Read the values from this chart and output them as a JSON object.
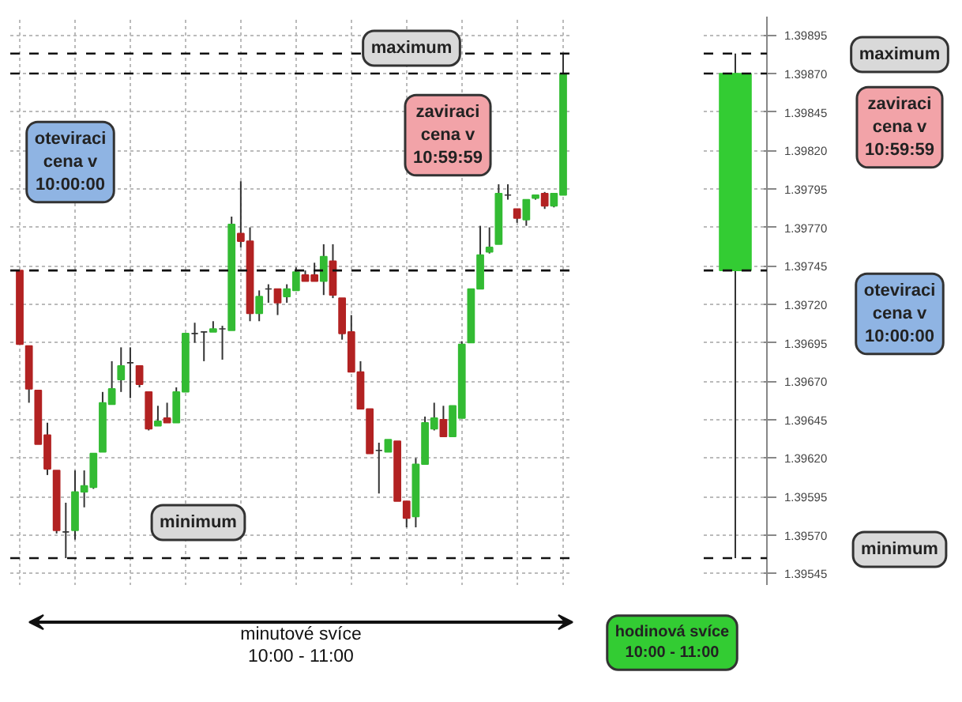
{
  "chart_data": [
    {
      "type": "candlestick",
      "categories": [
        null,
        null,
        null,
        null,
        null,
        null,
        null,
        null,
        null,
        null,
        null,
        null,
        null,
        null,
        null,
        null,
        null,
        null,
        null,
        null,
        null,
        null,
        null,
        null,
        null,
        null,
        null,
        null,
        null,
        null,
        null,
        null,
        null,
        null,
        null,
        null,
        null,
        null,
        null,
        null,
        null,
        null,
        null,
        null,
        null,
        null,
        null,
        null,
        null,
        null,
        null,
        null,
        null,
        null,
        null,
        null,
        null,
        null,
        null,
        null
      ],
      "ohlc": [
        [
          1.39742,
          1.39742,
          1.39694,
          1.39694
        ],
        [
          1.39693,
          1.39693,
          1.39656,
          1.39665
        ],
        [
          1.39664,
          1.39664,
          1.39629,
          1.39629
        ],
        [
          1.39635,
          1.39643,
          1.39609,
          1.39613
        ],
        [
          1.39612,
          1.39612,
          1.39571,
          1.39573
        ],
        [
          1.39572,
          1.39591,
          1.39555,
          1.39572
        ],
        [
          1.39573,
          1.39612,
          1.39567,
          1.39598
        ],
        [
          1.39598,
          1.39612,
          1.39588,
          1.39602
        ],
        [
          1.39601,
          1.39623,
          1.396,
          1.39623
        ],
        [
          1.39624,
          1.39663,
          1.39624,
          1.39656
        ],
        [
          1.39655,
          1.39683,
          1.39655,
          1.39665
        ],
        [
          1.39671,
          1.39692,
          1.39663,
          1.3968
        ],
        [
          1.39682,
          1.39692,
          1.39659,
          1.39682
        ],
        [
          1.3968,
          1.3968,
          1.39666,
          1.39668
        ],
        [
          1.39663,
          1.39663,
          1.39638,
          1.39639
        ],
        [
          1.39641,
          1.39654,
          1.39641,
          1.39644
        ],
        [
          1.39646,
          1.39656,
          1.39643,
          1.39643
        ],
        [
          1.39643,
          1.39666,
          1.39643,
          1.39663
        ],
        [
          1.39663,
          1.39701,
          1.39663,
          1.39701
        ],
        [
          1.39701,
          1.39708,
          1.39695,
          1.39701
        ],
        [
          1.39702,
          1.39702,
          1.39683,
          1.39702
        ],
        [
          1.39702,
          1.39709,
          1.39702,
          1.39704
        ],
        [
          1.39704,
          1.39706,
          1.39684,
          1.39704
        ],
        [
          1.39703,
          1.39777,
          1.39703,
          1.39772
        ],
        [
          1.39766,
          1.398,
          1.39757,
          1.39761
        ],
        [
          1.39761,
          1.3977,
          1.39709,
          1.39714
        ],
        [
          1.39714,
          1.39729,
          1.39709,
          1.39725
        ],
        [
          1.3973,
          1.39733,
          1.39721,
          1.3973
        ],
        [
          1.3973,
          1.3973,
          1.39713,
          1.39721
        ],
        [
          1.39725,
          1.39733,
          1.39721,
          1.3973
        ],
        [
          1.39729,
          1.39744,
          1.39729,
          1.39741
        ],
        [
          1.39739,
          1.39742,
          1.39735,
          1.39735
        ],
        [
          1.39739,
          1.39747,
          1.39735,
          1.39735
        ],
        [
          1.39735,
          1.39759,
          1.39726,
          1.39751
        ],
        [
          1.39748,
          1.39759,
          1.39724,
          1.39726
        ],
        [
          1.39724,
          1.39724,
          1.39697,
          1.39701
        ],
        [
          1.39702,
          1.39713,
          1.39676,
          1.39676
        ],
        [
          1.39676,
          1.39683,
          1.39652,
          1.39652
        ],
        [
          1.39652,
          1.39652,
          1.39623,
          1.39623
        ],
        [
          1.39625,
          1.3963,
          1.39597,
          1.39625
        ],
        [
          1.39624,
          1.39632,
          1.39624,
          1.39632
        ],
        [
          1.39631,
          1.39631,
          1.39592,
          1.39592
        ],
        [
          1.39592,
          1.39592,
          1.39575,
          1.39581
        ],
        [
          1.39582,
          1.3962,
          1.39575,
          1.39616
        ],
        [
          1.39616,
          1.39647,
          1.39616,
          1.39643
        ],
        [
          1.39639,
          1.39656,
          1.39638,
          1.39646
        ],
        [
          1.39645,
          1.39654,
          1.39634,
          1.39634
        ],
        [
          1.39634,
          1.39654,
          1.39634,
          1.39654
        ],
        [
          1.39646,
          1.39696,
          1.39646,
          1.39694
        ],
        [
          1.39695,
          1.3973,
          1.39695,
          1.3973
        ],
        [
          1.3973,
          1.39771,
          1.3973,
          1.39752
        ],
        [
          1.39754,
          1.3977,
          1.39753,
          1.39757
        ],
        [
          1.39759,
          1.39798,
          1.39759,
          1.39792
        ],
        [
          1.39791,
          1.39798,
          1.39788,
          1.39791
        ],
        [
          1.39782,
          1.39782,
          1.39773,
          1.39776
        ],
        [
          1.39775,
          1.39788,
          1.39771,
          1.39788
        ],
        [
          1.39789,
          1.39791,
          1.39788,
          1.39791
        ],
        [
          1.39792,
          1.39793,
          1.39782,
          1.39784
        ],
        [
          1.39784,
          1.39792,
          1.39783,
          1.39792
        ],
        [
          1.39791,
          1.39883,
          1.39791,
          1.3987
        ]
      ],
      "colors": [
        "#b22222",
        "#b22222",
        "#b22222",
        "#b22222",
        "#b22222",
        "#333333",
        "#33bb33",
        "#33bb33",
        "#33bb33",
        "#33bb33",
        "#33bb33",
        "#33bb33",
        "#333333",
        "#b22222",
        "#b22222",
        "#33bb33",
        "#b22222",
        "#33bb33",
        "#33bb33",
        "#333333",
        "#333333",
        "#33bb33",
        "#333333",
        "#33bb33",
        "#b22222",
        "#b22222",
        "#33bb33",
        "#333333",
        "#b22222",
        "#33bb33",
        "#33bb33",
        "#b22222",
        "#b22222",
        "#33bb33",
        "#b22222",
        "#b22222",
        "#b22222",
        "#b22222",
        "#b22222",
        "#333333",
        "#33bb33",
        "#b22222",
        "#b22222",
        "#33bb33",
        "#33bb33",
        "#33bb33",
        "#b22222",
        "#33bb33",
        "#33bb33",
        "#33bb33",
        "#33bb33",
        "#33bb33",
        "#33bb33",
        "#333333",
        "#b22222",
        "#33bb33",
        "#33bb33",
        "#b22222",
        "#33bb33",
        "#33bb33"
      ],
      "ylim": [
        1.39537,
        1.39907
      ],
      "yticks": [
        1.39545,
        1.3957,
        1.39595,
        1.3962,
        1.39645,
        1.3967,
        1.39695,
        1.3972,
        1.39745,
        1.3977,
        1.39795,
        1.3982,
        1.39845,
        1.3987,
        1.39895
      ],
      "tick_labels": false,
      "grid": true,
      "ref_lines": [
        {
          "axis": "y",
          "value": 1.39883,
          "line_style": "dashed"
        },
        {
          "axis": "y",
          "value": 1.3987,
          "line_style": "dashed"
        },
        {
          "axis": "y",
          "value": 1.39742,
          "line_style": "dashed"
        },
        {
          "axis": "y",
          "value": 1.39555,
          "line_style": "dashed"
        }
      ],
      "annotations": [
        "maximum",
        "zaviraci\ncena v\n10:59:59",
        "oteviraci\ncena v\n10:00:00",
        "minimum",
        "minutové svíce\n10:00 - 11:00"
      ]
    },
    {
      "type": "candlestick",
      "categories": [
        null
      ],
      "ohlc": [
        [
          1.39742,
          1.39883,
          1.39555,
          1.3987
        ]
      ],
      "colors": [
        "#33cc33"
      ],
      "ylim": [
        1.39537,
        1.39907
      ],
      "yticks": [
        1.39545,
        {
          "value": 1.3957,
          "label": "1.39570"
        },
        1.39595,
        {
          "value": 1.3962,
          "label": "1.39620"
        },
        1.39645,
        {
          "value": 1.3967,
          "label": "1.39670"
        },
        1.39695,
        {
          "value": 1.3972,
          "label": "1.39720"
        },
        1.39745,
        {
          "value": 1.3977,
          "label": "1.39770"
        },
        1.39795,
        {
          "value": 1.3982,
          "label": "1.39820"
        },
        1.39845,
        {
          "value": 1.3987,
          "label": "1.39870"
        },
        1.39895
      ],
      "tick_labels": "y",
      "grid": "y",
      "ref_lines": [
        {
          "axis": "y",
          "value": 1.39883,
          "line_style": "dashed"
        },
        {
          "axis": "y",
          "value": 1.3987,
          "line_style": "dashed"
        },
        {
          "axis": "y",
          "value": 1.39742,
          "line_style": "dashed"
        },
        {
          "axis": "y",
          "value": 1.39555,
          "line_style": "dashed"
        }
      ],
      "annotations": [
        "maximum",
        "zaviraci\ncena v\n10:59:59",
        "oteviraci\ncena v\n10:00:00",
        "minimum",
        "hodinová svíce\n10:00 - 11:00"
      ]
    }
  ]
}
